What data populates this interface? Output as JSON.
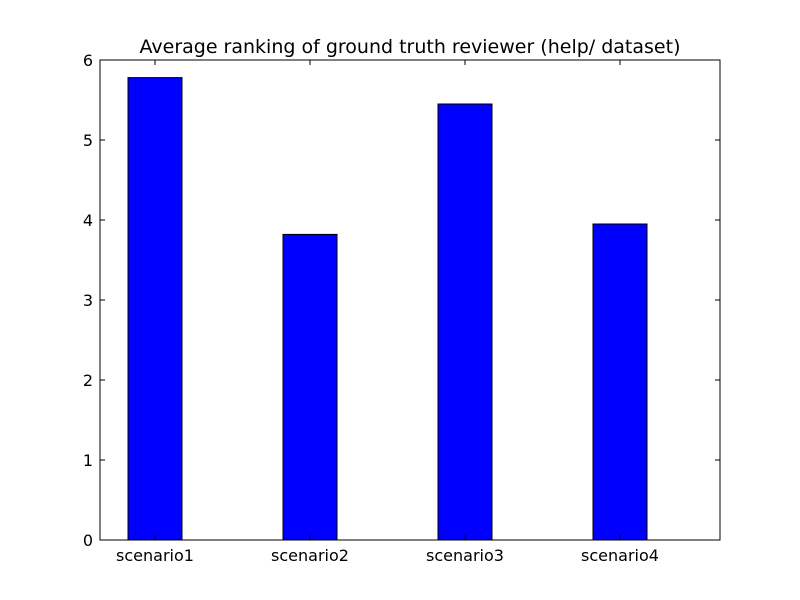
{
  "chart_data": {
    "type": "bar",
    "title": "Average ranking of ground truth reviewer (help/ dataset)",
    "xlabel": "",
    "ylabel": "",
    "categories": [
      "scenario1",
      "scenario2",
      "scenario3",
      "scenario4"
    ],
    "values": [
      5.78,
      3.82,
      5.45,
      3.95
    ],
    "ylim": [
      0,
      6
    ],
    "yticks": [
      "0",
      "1",
      "2",
      "3",
      "4",
      "5",
      "6"
    ],
    "bar_color": "#0000ff",
    "edge_color": "#000000",
    "grid": false,
    "legend": "none"
  }
}
